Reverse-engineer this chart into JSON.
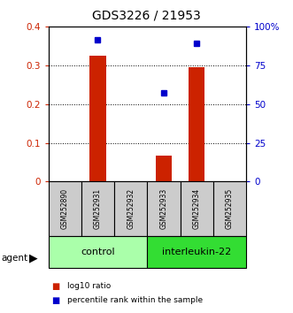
{
  "title": "GDS3226 / 21953",
  "samples": [
    "GSM252890",
    "GSM252931",
    "GSM252932",
    "GSM252933",
    "GSM252934",
    "GSM252935"
  ],
  "log10_ratio": [
    0.0,
    0.325,
    0.0,
    0.068,
    0.295,
    0.0
  ],
  "percentile_rank": [
    null,
    91.5,
    null,
    57.0,
    89.0,
    null
  ],
  "groups": [
    {
      "label": "control",
      "start": 0,
      "end": 3,
      "color": "#AAFFAA"
    },
    {
      "label": "interleukin-22",
      "start": 3,
      "end": 6,
      "color": "#33DD33"
    }
  ],
  "ylim_left": [
    0,
    0.4
  ],
  "ylim_right": [
    0,
    100
  ],
  "yticks_left": [
    0,
    0.1,
    0.2,
    0.3,
    0.4
  ],
  "ytick_labels_left": [
    "0",
    "0.1",
    "0.2",
    "0.3",
    "0.4"
  ],
  "yticks_right": [
    0,
    25,
    50,
    75,
    100
  ],
  "ytick_labels_right": [
    "0",
    "25",
    "50",
    "75",
    "100%"
  ],
  "bar_color": "#CC2200",
  "dot_color": "#0000CC",
  "sample_box_color": "#CCCCCC",
  "legend_items": [
    {
      "label": "log10 ratio",
      "color": "#CC2200"
    },
    {
      "label": "percentile rank within the sample",
      "color": "#0000CC"
    }
  ]
}
